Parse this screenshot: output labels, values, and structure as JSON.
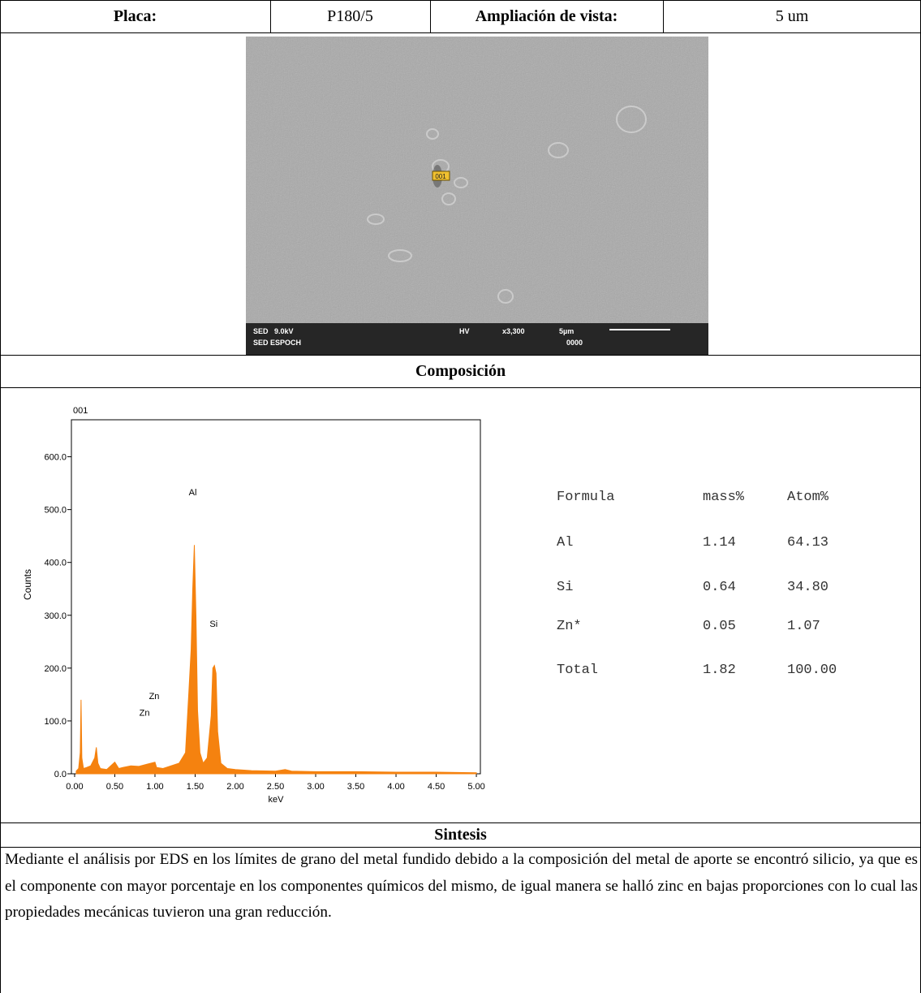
{
  "header": {
    "plate_label": "Placa:",
    "plate_value": "P180/5",
    "zoom_label": "Ampliación de vista:",
    "zoom_value": "5 um"
  },
  "image": {
    "left_line1": "SED   9.0kV",
    "left_line2": "SED ESPOCH",
    "mode": "HV",
    "magnification": "x3,300",
    "scale": "5µm",
    "code": "0000",
    "marker": "001"
  },
  "composition_title": "Composición",
  "chart_data": {
    "type": "area",
    "title": "001",
    "x_label": "keV",
    "y_label": "Counts",
    "color": "#f5820f",
    "x": [
      0.02,
      0.05,
      0.07,
      0.08,
      0.09,
      0.11,
      0.15,
      0.2,
      0.25,
      0.27,
      0.29,
      0.32,
      0.4,
      0.5,
      0.55,
      0.6,
      0.7,
      0.8,
      0.9,
      1.0,
      1.02,
      1.1,
      1.2,
      1.3,
      1.38,
      1.42,
      1.45,
      1.47,
      1.49,
      1.51,
      1.53,
      1.56,
      1.6,
      1.65,
      1.7,
      1.72,
      1.74,
      1.76,
      1.78,
      1.82,
      1.9,
      2.0,
      2.2,
      2.5,
      2.62,
      2.7,
      3.0,
      3.5,
      4.0,
      4.5,
      5.0
    ],
    "values": [
      5,
      10,
      40,
      140,
      30,
      10,
      12,
      15,
      30,
      50,
      20,
      10,
      8,
      22,
      10,
      12,
      15,
      14,
      18,
      22,
      12,
      10,
      15,
      20,
      40,
      150,
      235,
      350,
      433,
      300,
      120,
      40,
      20,
      30,
      110,
      200,
      205,
      190,
      80,
      20,
      10,
      8,
      6,
      5,
      8,
      5,
      4,
      4,
      3,
      3,
      2
    ],
    "xlim": [
      -0.04,
      5.05
    ],
    "ylim": [
      0,
      670
    ],
    "xticks": [
      {
        "value": 0,
        "label": "0.00"
      },
      {
        "value": 0.5,
        "label": "0.50"
      },
      {
        "value": 1,
        "label": "1.00"
      },
      {
        "value": 1.5,
        "label": "1.50"
      },
      {
        "value": 2,
        "label": "2.00"
      },
      {
        "value": 2.5,
        "label": "2.50"
      },
      {
        "value": 3,
        "label": "3.00"
      },
      {
        "value": 3.5,
        "label": "3.50"
      },
      {
        "value": 4,
        "label": "4.00"
      },
      {
        "value": 4.5,
        "label": "4.50"
      },
      {
        "value": 5,
        "label": "5.00"
      }
    ],
    "yticks": [
      {
        "value": 0,
        "label": "0.0"
      },
      {
        "value": 100,
        "label": "100.0"
      },
      {
        "value": 200,
        "label": "200.0"
      },
      {
        "value": 300,
        "label": "300.0"
      },
      {
        "value": 400,
        "label": "400.0"
      },
      {
        "value": 500,
        "label": "500.0"
      },
      {
        "value": 600,
        "label": "600.0"
      }
    ],
    "annotations": [
      "Al",
      "Si",
      "Zn",
      "Zn"
    ]
  },
  "composition_table": {
    "header": [
      "Formula",
      "mass%",
      "Atom%"
    ],
    "rows": [
      [
        "Al",
        "1.14",
        "64.13"
      ],
      [
        "Si",
        "0.64",
        "34.80"
      ],
      [
        "Zn*",
        "0.05",
        "1.07"
      ],
      [
        "Total",
        "1.82",
        "100.00"
      ]
    ]
  },
  "synthesis": {
    "title": "Sintesis",
    "text": "Mediante el análisis por EDS en los límites de grano del metal fundido debido a la composición del metal de aporte se encontró silicio, ya que es el componente con mayor porcentaje en los componentes químicos del mismo, de igual manera se halló zinc en bajas proporciones con lo cual las propiedades mecánicas tuvieron una gran reducción."
  }
}
